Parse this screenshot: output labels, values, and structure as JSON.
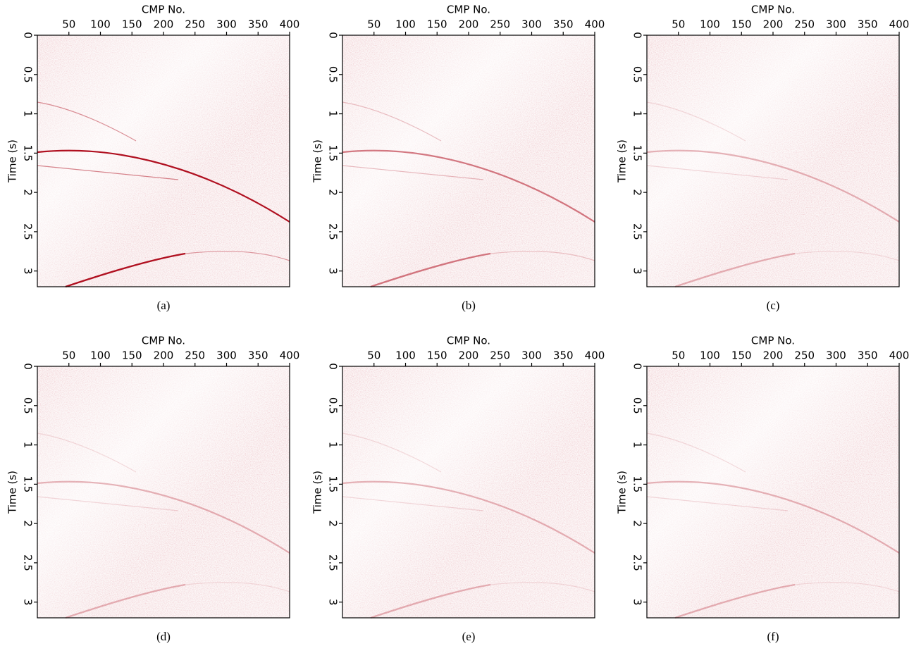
{
  "chart_data": [
    {
      "type": "image",
      "title": "CMP No.",
      "ylabel": "Time (s)",
      "caption": "(a)",
      "xlim": [
        0,
        400
      ],
      "ylim": [
        0,
        3.2
      ],
      "xticks": [
        50,
        100,
        150,
        200,
        250,
        300,
        350,
        400
      ],
      "yticks": [
        0,
        0.5,
        1,
        1.5,
        2,
        2.5,
        3
      ]
    },
    {
      "type": "image",
      "title": "CMP No.",
      "ylabel": "Time (s)",
      "caption": "(b)",
      "xlim": [
        0,
        400
      ],
      "ylim": [
        0,
        3.2
      ],
      "xticks": [
        50,
        100,
        150,
        200,
        250,
        300,
        350,
        400
      ],
      "yticks": [
        0,
        0.5,
        1,
        1.5,
        2,
        2.5,
        3
      ]
    },
    {
      "type": "image",
      "title": "CMP No.",
      "ylabel": "Time (s)",
      "caption": "(c)",
      "xlim": [
        0,
        400
      ],
      "ylim": [
        0,
        3.2
      ],
      "xticks": [
        50,
        100,
        150,
        200,
        250,
        300,
        350,
        400
      ],
      "yticks": [
        0,
        0.5,
        1,
        1.5,
        2,
        2.5,
        3
      ]
    },
    {
      "type": "image",
      "title": "CMP No.",
      "ylabel": "Time (s)",
      "caption": "(d)",
      "xlim": [
        0,
        400
      ],
      "ylim": [
        0,
        3.2
      ],
      "xticks": [
        50,
        100,
        150,
        200,
        250,
        300,
        350,
        400
      ],
      "yticks": [
        0,
        0.5,
        1,
        1.5,
        2,
        2.5,
        3
      ]
    },
    {
      "type": "image",
      "title": "CMP No.",
      "ylabel": "Time (s)",
      "caption": "(e)",
      "xlim": [
        0,
        400
      ],
      "ylim": [
        0,
        3.2
      ],
      "xticks": [
        50,
        100,
        150,
        200,
        250,
        300,
        350,
        400
      ],
      "yticks": [
        0,
        0.5,
        1,
        1.5,
        2,
        2.5,
        3
      ]
    },
    {
      "type": "image",
      "title": "CMP No.",
      "ylabel": "Time (s)",
      "caption": "(f)",
      "xlim": [
        0,
        400
      ],
      "ylim": [
        0,
        3.2
      ],
      "xticks": [
        50,
        100,
        150,
        200,
        250,
        300,
        350,
        400
      ],
      "yticks": [
        0,
        0.5,
        1,
        1.5,
        2,
        2.5,
        3
      ]
    }
  ]
}
